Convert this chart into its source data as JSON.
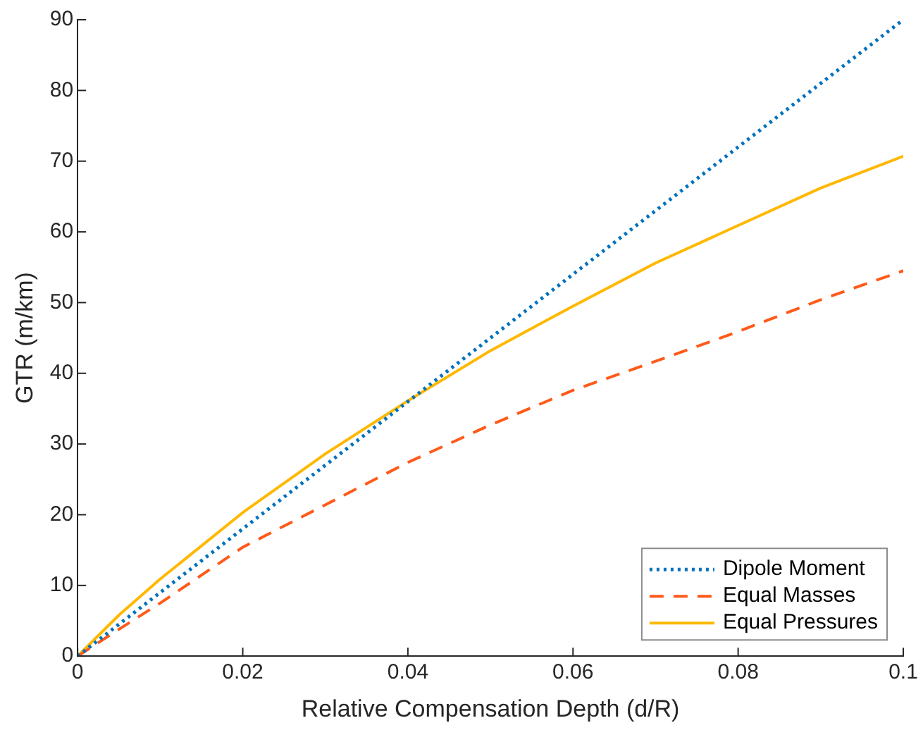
{
  "chart_data": {
    "type": "line",
    "xlabel": "Relative Compensation Depth (d/R)",
    "ylabel": "GTR (m/km)",
    "x": [
      0,
      0.005,
      0.01,
      0.02,
      0.03,
      0.04,
      0.05,
      0.06,
      0.07,
      0.08,
      0.09,
      0.1
    ],
    "xlim": [
      0,
      0.1
    ],
    "xticks": [
      0,
      0.02,
      0.04,
      0.06,
      0.08,
      0.1
    ],
    "ylim": [
      0,
      90
    ],
    "yticks": [
      0,
      10,
      20,
      30,
      40,
      50,
      60,
      70,
      80,
      90
    ],
    "grid": false,
    "legend": "bottom right",
    "marker": "none",
    "series": [
      {
        "name": "Dipole Moment",
        "color": "#0072bd",
        "line_style": "dotted",
        "values": [
          0,
          4.5,
          9,
          18,
          27,
          36,
          45,
          54,
          63,
          72,
          81,
          90
        ]
      },
      {
        "name": "Equal Masses",
        "color": "#ff5a1a",
        "line_style": "dashed",
        "values": [
          0,
          3.8,
          7.5,
          15.4,
          21.4,
          27.4,
          32.7,
          37.6,
          41.7,
          45.9,
          50.4,
          54.5
        ]
      },
      {
        "name": "Equal Pressures",
        "color": "#ffb800",
        "line_style": "solid",
        "values": [
          0,
          5.8,
          10.9,
          20.3,
          28.6,
          36.1,
          43.2,
          49.5,
          55.6,
          60.9,
          66.2,
          70.7
        ]
      }
    ]
  }
}
